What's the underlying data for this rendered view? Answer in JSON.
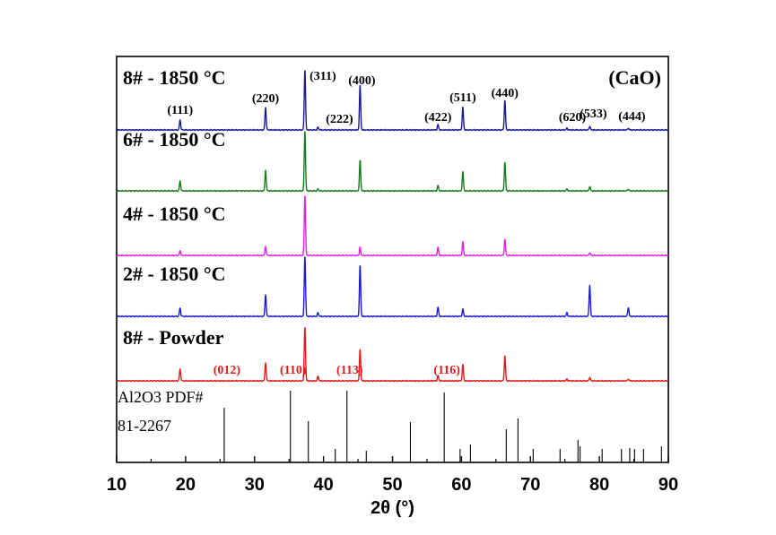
{
  "chart_data": {
    "type": "line",
    "title": "",
    "xlabel": "2θ (°)",
    "ylabel": "",
    "xlim": [
      10,
      90
    ],
    "xticks": [
      10,
      20,
      30,
      40,
      50,
      60,
      70,
      80,
      90
    ],
    "series": [
      {
        "name": "8# - 1850 °C",
        "color": "#1a1a8c",
        "peaks": [
          [
            19.2,
            11
          ],
          [
            31.6,
            25
          ],
          [
            37.3,
            68
          ],
          [
            39.2,
            3
          ],
          [
            45.3,
            50
          ],
          [
            56.6,
            6
          ],
          [
            60.2,
            25
          ],
          [
            66.3,
            33
          ],
          [
            75.3,
            2
          ],
          [
            78.6,
            4
          ],
          [
            84.2,
            2
          ]
        ]
      },
      {
        "name": "6# - 1850 °C",
        "color": "#1a7a1a",
        "peaks": [
          [
            19.2,
            11
          ],
          [
            31.6,
            23
          ],
          [
            37.3,
            68
          ],
          [
            39.2,
            2
          ],
          [
            45.3,
            34
          ],
          [
            56.6,
            6
          ],
          [
            60.2,
            21
          ],
          [
            66.3,
            32
          ],
          [
            75.3,
            2
          ],
          [
            78.6,
            5
          ],
          [
            84.2,
            2
          ]
        ]
      },
      {
        "name": "4# - 1850 °C",
        "color": "#e020e0",
        "peaks": [
          [
            19.2,
            5
          ],
          [
            31.6,
            10
          ],
          [
            37.3,
            68
          ],
          [
            45.3,
            9
          ],
          [
            56.6,
            9
          ],
          [
            60.2,
            15
          ],
          [
            66.3,
            18
          ],
          [
            78.6,
            3
          ]
        ]
      },
      {
        "name": "2# - 1850 °C",
        "color": "#1a1ad0",
        "peaks": [
          [
            19.2,
            9
          ],
          [
            31.6,
            24
          ],
          [
            37.3,
            68
          ],
          [
            39.2,
            4
          ],
          [
            45.3,
            57
          ],
          [
            56.6,
            10
          ],
          [
            60.2,
            8
          ],
          [
            75.3,
            4
          ],
          [
            78.6,
            35
          ],
          [
            84.2,
            10
          ]
        ]
      },
      {
        "name": "8# - Powder",
        "color": "#e01a1a",
        "peaks": [
          [
            19.2,
            13
          ],
          [
            31.6,
            20
          ],
          [
            37.3,
            61
          ],
          [
            39.2,
            5
          ],
          [
            45.3,
            35
          ],
          [
            56.6,
            6
          ],
          [
            60.2,
            18
          ],
          [
            66.3,
            28
          ],
          [
            75.3,
            2
          ],
          [
            78.6,
            4
          ],
          [
            84.2,
            2
          ]
        ]
      }
    ],
    "reference": {
      "name": "Al2O3 PDF# 81-2267",
      "sticks": [
        [
          25.6,
          61
        ],
        [
          35.2,
          80
        ],
        [
          37.8,
          46
        ],
        [
          41.7,
          15
        ],
        [
          43.4,
          80
        ],
        [
          46.2,
          13
        ],
        [
          52.6,
          45
        ],
        [
          57.5,
          78
        ],
        [
          59.8,
          15
        ],
        [
          61.3,
          20
        ],
        [
          66.5,
          37
        ],
        [
          68.2,
          49
        ],
        [
          70.4,
          15
        ],
        [
          74.3,
          15
        ],
        [
          76.9,
          25
        ],
        [
          77.2,
          18
        ],
        [
          80.4,
          15
        ],
        [
          83.2,
          15
        ],
        [
          84.4,
          16
        ],
        [
          85.1,
          15
        ],
        [
          86.4,
          15
        ],
        [
          89.0,
          18
        ]
      ]
    }
  },
  "labels": {
    "cao_label": "(CaO)",
    "series_names": [
      "8# - 1850 °C",
      "6# - 1850 °C",
      "4# - 1850 °C",
      "2# - 1850 °C",
      "8# - Powder"
    ],
    "reference_line1": "Al2O3 PDF#",
    "reference_line2": "81-2267",
    "cao_indices": [
      {
        "text": "(111)",
        "x": 19.2
      },
      {
        "text": "(220)",
        "x": 31.6
      },
      {
        "text": "(311)",
        "x": 37.3
      },
      {
        "text": "(222)",
        "x": 39.2
      },
      {
        "text": "(400)",
        "x": 45.3
      },
      {
        "text": "(422)",
        "x": 56.6
      },
      {
        "text": "(511)",
        "x": 60.2
      },
      {
        "text": "(440)",
        "x": 66.3
      },
      {
        "text": "(620)",
        "x": 75.3
      },
      {
        "text": "(533)",
        "x": 78.6
      },
      {
        "text": "(444)",
        "x": 84.2
      }
    ],
    "al2o3_indices": [
      {
        "text": "(012)",
        "x": 25.6
      },
      {
        "text": "(110)",
        "x": 35.2
      },
      {
        "text": "(113)",
        "x": 43.4
      },
      {
        "text": "(116)",
        "x": 57.5
      }
    ],
    "cao_index_color": "#000000",
    "al2o3_index_color": "#e01a1a"
  }
}
